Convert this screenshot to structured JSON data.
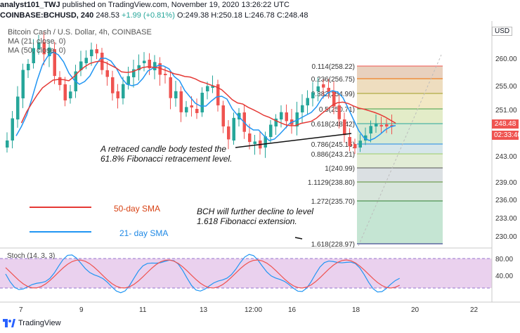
{
  "header": {
    "publisher": "analyst101_TWJ",
    "published_text": "published on TradingView.com, November 19, 2020 13:26:22 UTC",
    "symbol": "COINBASE:BCHUSD, 240",
    "last": "248.53",
    "change": "+1.99 (+0.81%)",
    "ohlc": "O:249.38 H:250.18 L:246.78 C:248.48"
  },
  "legend": {
    "title": "Bitcoin Cash / U.S. Dollar, 4h, COINBASE",
    "ma1": "MA (21, close, 0)",
    "ma2": "MA (50, close, 0)"
  },
  "currency": "USD",
  "price_axis": [
    "260.00",
    "255.00",
    "251.00",
    "243.00",
    "239.00",
    "236.00",
    "233.00",
    "230.00"
  ],
  "current_price": "248.48",
  "countdown": "02:33:40",
  "time_axis": [
    "7",
    "9",
    "11",
    "13",
    "12:00",
    "16",
    "18",
    "20",
    "22"
  ],
  "fib_levels": [
    {
      "label": "0.114(258.22)",
      "color": "#ef5350"
    },
    {
      "label": "0.236(256.75)",
      "color": "#ef6c00"
    },
    {
      "label": "0.382(254.99)",
      "color": "#9e9d24"
    },
    {
      "label": "0.5(250.71)",
      "color": "#43a047"
    },
    {
      "label": "0.618(248.42)",
      "color": "#26a69a"
    },
    {
      "label": "0.786(245.15)",
      "color": "#1e88e5"
    },
    {
      "label": "0.886(243.21)",
      "color": "#9ccc65"
    },
    {
      "label": "1(240.99)",
      "color": "#555555"
    },
    {
      "label": "1.1129(238.80)",
      "color": "#558b2f"
    },
    {
      "label": "1.272(235.70)",
      "color": "#2e7d32"
    },
    {
      "label": "1.618(228.97)",
      "color": "#1a237e"
    }
  ],
  "annotations": {
    "retrace": "A retraced candle body tested the\n61.8% Fibonacci retracement level.",
    "decline": "BCH will further decline to level\n1.618 Fibonacci extension.",
    "sma50": "50-day SMA",
    "sma21": "21- day SMA"
  },
  "stoch": {
    "label": "Stoch (14, 3, 3)",
    "levels": [
      "80.00",
      "40.00"
    ]
  },
  "footer": {
    "brand": "TradingView"
  },
  "colors": {
    "up": "#26a69a",
    "down": "#ef5350",
    "ma21": "#2196f3",
    "ma50": "#e53935",
    "stoch_bg": "#e1bee7"
  }
}
